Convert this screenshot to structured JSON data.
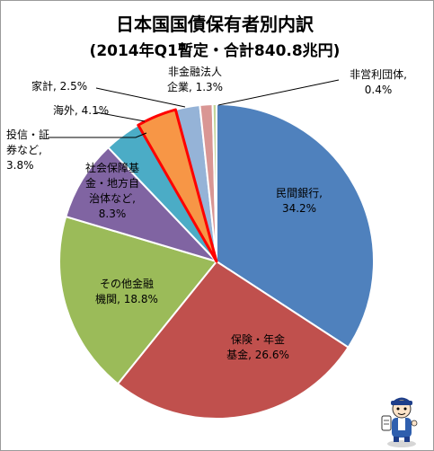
{
  "chart_data": {
    "type": "pie",
    "title": "日本国国債保有者別内訳",
    "subtitle": "(2014年Q1暫定・合計840.8兆円)",
    "start_angle_deg": 0,
    "direction": "clockwise",
    "legend": "none",
    "slices": [
      {
        "key": "minkan",
        "label_lines": [
          "民間銀行,"
        ],
        "pct_text": "34.2%",
        "value": 34.2,
        "color": "#4F81BD",
        "highlight": false
      },
      {
        "key": "hoken",
        "label_lines": [
          "保険・年金",
          "基金, 26.6%"
        ],
        "pct_text": "",
        "value": 26.6,
        "color": "#C0504D",
        "highlight": false
      },
      {
        "key": "sonota",
        "label_lines": [
          "その他金融",
          "機関, 18.8%"
        ],
        "pct_text": "",
        "value": 18.8,
        "color": "#9BBB59",
        "highlight": false
      },
      {
        "key": "shakai",
        "label_lines": [
          "社会保障基",
          "金・地方自",
          "治体など,"
        ],
        "pct_text": "8.3%",
        "value": 8.3,
        "color": "#8064A2",
        "highlight": false
      },
      {
        "key": "toshin",
        "label_lines": [
          "投信・証",
          "券など,"
        ],
        "pct_text": "3.8%",
        "value": 3.8,
        "color": "#4BACC6",
        "highlight": false
      },
      {
        "key": "kaigai",
        "label_lines": [
          "海外, 4.1%"
        ],
        "pct_text": "",
        "value": 4.1,
        "color": "#F79646",
        "highlight": true
      },
      {
        "key": "kakei",
        "label_lines": [
          "家計, 2.5%"
        ],
        "pct_text": "",
        "value": 2.5,
        "color": "#95B3D7",
        "highlight": false
      },
      {
        "key": "hikinyu",
        "label_lines": [
          "非金融法人",
          "企業, 1.3%"
        ],
        "pct_text": "",
        "value": 1.3,
        "color": "#D99694",
        "highlight": false
      },
      {
        "key": "hieiri",
        "label_lines": [
          "非営利団体,"
        ],
        "pct_text": "0.4%",
        "value": 0.4,
        "color": "#C3D69B",
        "highlight": false
      }
    ]
  },
  "highlight_color": "#FF0000"
}
